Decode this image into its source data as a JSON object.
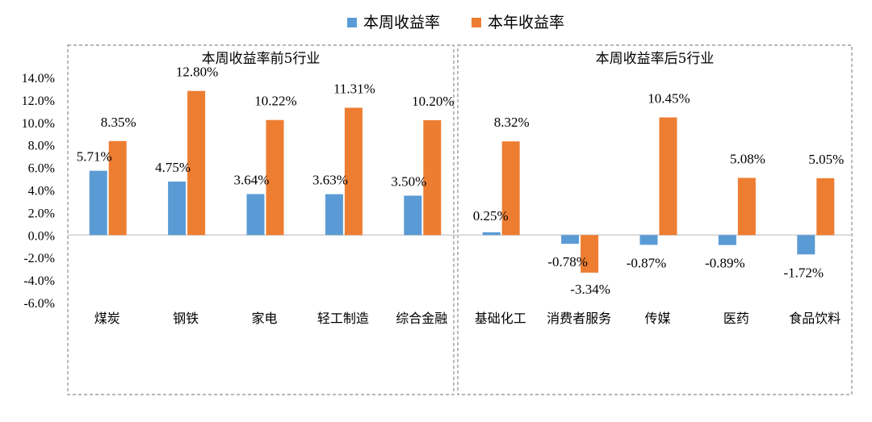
{
  "chart_data": {
    "type": "bar",
    "series": [
      {
        "name": "本周收益率",
        "color": "#5B9BD5"
      },
      {
        "name": "本年收益率",
        "color": "#ED7D31"
      }
    ],
    "ylim": [
      -6,
      14
    ],
    "yticks": [
      "14.0%",
      "12.0%",
      "10.0%",
      "8.0%",
      "6.0%",
      "4.0%",
      "2.0%",
      "0.0%",
      "-2.0%",
      "-4.0%",
      "-6.0%"
    ],
    "panels": [
      {
        "title": "本周收益率前5行业",
        "categories": [
          "煤炭",
          "钢铁",
          "家电",
          "轻工制造",
          "综合金融"
        ],
        "weekly": [
          5.71,
          4.75,
          3.64,
          3.63,
          3.5
        ],
        "yearly": [
          8.35,
          12.8,
          10.22,
          11.31,
          10.2
        ],
        "weekly_labels": [
          "5.71%",
          "4.75%",
          "3.64%",
          "3.63%",
          "3.50%"
        ],
        "yearly_labels": [
          "8.35%",
          "12.80%",
          "10.22%",
          "11.31%",
          "10.20%"
        ]
      },
      {
        "title": "本周收益率后5行业",
        "categories": [
          "基础化工",
          "消费者服务",
          "传媒",
          "医药",
          "食品饮料"
        ],
        "weekly": [
          0.25,
          -0.78,
          -0.87,
          -0.89,
          -1.72
        ],
        "yearly": [
          8.32,
          -3.34,
          10.45,
          5.08,
          5.05
        ],
        "weekly_labels": [
          "0.25%",
          "-0.78%",
          "-0.87%",
          "-0.89%",
          "-1.72%"
        ],
        "yearly_labels": [
          "8.32%",
          "-3.34%",
          "10.45%",
          "5.08%",
          "5.05%"
        ]
      }
    ]
  }
}
